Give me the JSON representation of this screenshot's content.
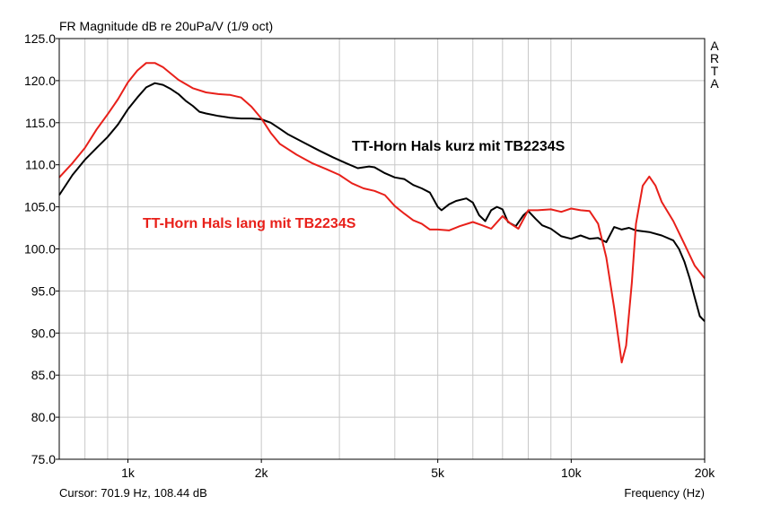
{
  "header": {
    "title": "FR Magnitude dB re 20uPa/V (1/9 oct)",
    "watermark": "ARTA"
  },
  "footer": {
    "cursor_readout": "Cursor: 701.9 Hz, 108.44 dB",
    "xlabel": "Frequency (Hz)"
  },
  "chart_data": {
    "type": "line",
    "title": "FR Magnitude dB re 20uPa/V (1/9 oct)",
    "xlabel": "Frequency (Hz)",
    "ylabel": "",
    "x_scale": "log",
    "xlim": [
      700,
      20000
    ],
    "ylim": [
      75,
      125
    ],
    "grid": true,
    "x_ticks": [
      {
        "value": 1000,
        "label": "1k"
      },
      {
        "value": 2000,
        "label": "2k"
      },
      {
        "value": 5000,
        "label": "5k"
      },
      {
        "value": 10000,
        "label": "10k"
      },
      {
        "value": 20000,
        "label": "20k"
      }
    ],
    "y_ticks": [
      {
        "value": 125,
        "label": "125.0"
      },
      {
        "value": 120,
        "label": "120.0"
      },
      {
        "value": 115,
        "label": "115.0"
      },
      {
        "value": 110,
        "label": "110.0"
      },
      {
        "value": 105,
        "label": "105.0"
      },
      {
        "value": 100,
        "label": "100.0"
      },
      {
        "value": 95,
        "label": "95.0"
      },
      {
        "value": 90,
        "label": "90.0"
      },
      {
        "value": 85,
        "label": "85.0"
      },
      {
        "value": 80,
        "label": "80.0"
      },
      {
        "value": 75,
        "label": "75.0"
      }
    ],
    "annotations": [
      {
        "text": "TT-Horn Hals kurz mit TB2234S",
        "x": 3200,
        "y": 111.7,
        "color": "#000000"
      },
      {
        "text": "TT-Horn Hals lang mit TB2234S",
        "x": 1080,
        "y": 102.5,
        "color": "#e8201a"
      }
    ],
    "series": [
      {
        "name": "TT-Horn Hals kurz mit TB2234S",
        "color": "#000000",
        "points": [
          [
            700,
            106.4
          ],
          [
            750,
            108.8
          ],
          [
            800,
            110.6
          ],
          [
            850,
            112.0
          ],
          [
            900,
            113.3
          ],
          [
            950,
            114.8
          ],
          [
            1000,
            116.6
          ],
          [
            1050,
            118.0
          ],
          [
            1100,
            119.2
          ],
          [
            1150,
            119.7
          ],
          [
            1200,
            119.5
          ],
          [
            1250,
            119.0
          ],
          [
            1300,
            118.4
          ],
          [
            1350,
            117.6
          ],
          [
            1400,
            117.0
          ],
          [
            1450,
            116.3
          ],
          [
            1500,
            116.1
          ],
          [
            1600,
            115.8
          ],
          [
            1700,
            115.6
          ],
          [
            1800,
            115.5
          ],
          [
            1900,
            115.5
          ],
          [
            2000,
            115.4
          ],
          [
            2100,
            115.0
          ],
          [
            2200,
            114.3
          ],
          [
            2300,
            113.6
          ],
          [
            2500,
            112.6
          ],
          [
            2700,
            111.7
          ],
          [
            2900,
            110.9
          ],
          [
            3100,
            110.2
          ],
          [
            3300,
            109.6
          ],
          [
            3500,
            109.8
          ],
          [
            3600,
            109.7
          ],
          [
            3800,
            109.0
          ],
          [
            4000,
            108.5
          ],
          [
            4200,
            108.3
          ],
          [
            4400,
            107.6
          ],
          [
            4600,
            107.2
          ],
          [
            4800,
            106.7
          ],
          [
            5000,
            105.0
          ],
          [
            5100,
            104.6
          ],
          [
            5300,
            105.3
          ],
          [
            5500,
            105.7
          ],
          [
            5800,
            106.0
          ],
          [
            6000,
            105.5
          ],
          [
            6200,
            104.0
          ],
          [
            6400,
            103.3
          ],
          [
            6600,
            104.6
          ],
          [
            6800,
            105.0
          ],
          [
            7000,
            104.7
          ],
          [
            7200,
            103.2
          ],
          [
            7500,
            102.7
          ],
          [
            7800,
            104.0
          ],
          [
            8000,
            104.5
          ],
          [
            8300,
            103.6
          ],
          [
            8600,
            102.8
          ],
          [
            9000,
            102.4
          ],
          [
            9500,
            101.5
          ],
          [
            10000,
            101.2
          ],
          [
            10500,
            101.6
          ],
          [
            11000,
            101.2
          ],
          [
            11500,
            101.3
          ],
          [
            12000,
            100.8
          ],
          [
            12500,
            102.6
          ],
          [
            13000,
            102.3
          ],
          [
            13500,
            102.5
          ],
          [
            14000,
            102.2
          ],
          [
            15000,
            102.0
          ],
          [
            16000,
            101.6
          ],
          [
            17000,
            101.0
          ],
          [
            17500,
            100.0
          ],
          [
            18000,
            98.5
          ],
          [
            18500,
            96.5
          ],
          [
            19000,
            94.2
          ],
          [
            19500,
            92.0
          ],
          [
            20000,
            91.4
          ]
        ]
      },
      {
        "name": "TT-Horn Hals lang mit TB2234S",
        "color": "#e8201a",
        "points": [
          [
            700,
            108.5
          ],
          [
            750,
            110.2
          ],
          [
            800,
            112.0
          ],
          [
            850,
            114.2
          ],
          [
            900,
            116.0
          ],
          [
            950,
            117.8
          ],
          [
            1000,
            119.8
          ],
          [
            1050,
            121.2
          ],
          [
            1100,
            122.1
          ],
          [
            1150,
            122.1
          ],
          [
            1200,
            121.6
          ],
          [
            1300,
            120.1
          ],
          [
            1400,
            119.1
          ],
          [
            1500,
            118.6
          ],
          [
            1600,
            118.4
          ],
          [
            1700,
            118.3
          ],
          [
            1800,
            118.0
          ],
          [
            1900,
            116.9
          ],
          [
            2000,
            115.5
          ],
          [
            2100,
            113.8
          ],
          [
            2200,
            112.5
          ],
          [
            2400,
            111.2
          ],
          [
            2600,
            110.2
          ],
          [
            2800,
            109.5
          ],
          [
            3000,
            108.8
          ],
          [
            3200,
            107.8
          ],
          [
            3400,
            107.2
          ],
          [
            3600,
            106.9
          ],
          [
            3800,
            106.4
          ],
          [
            4000,
            105.1
          ],
          [
            4200,
            104.2
          ],
          [
            4400,
            103.4
          ],
          [
            4600,
            103.0
          ],
          [
            4800,
            102.3
          ],
          [
            5000,
            102.3
          ],
          [
            5300,
            102.2
          ],
          [
            5600,
            102.7
          ],
          [
            6000,
            103.2
          ],
          [
            6300,
            102.8
          ],
          [
            6600,
            102.4
          ],
          [
            7000,
            103.9
          ],
          [
            7300,
            103.0
          ],
          [
            7600,
            102.4
          ],
          [
            8000,
            104.6
          ],
          [
            8400,
            104.6
          ],
          [
            9000,
            104.7
          ],
          [
            9500,
            104.4
          ],
          [
            10000,
            104.8
          ],
          [
            10500,
            104.6
          ],
          [
            11000,
            104.5
          ],
          [
            11500,
            103.0
          ],
          [
            12000,
            99.0
          ],
          [
            12500,
            93.0
          ],
          [
            13000,
            86.5
          ],
          [
            13300,
            88.5
          ],
          [
            13700,
            96.0
          ],
          [
            14000,
            103.0
          ],
          [
            14500,
            107.5
          ],
          [
            15000,
            108.6
          ],
          [
            15500,
            107.5
          ],
          [
            16000,
            105.6
          ],
          [
            17000,
            103.3
          ],
          [
            18000,
            100.6
          ],
          [
            19000,
            98.0
          ],
          [
            20000,
            96.5
          ]
        ]
      }
    ]
  }
}
